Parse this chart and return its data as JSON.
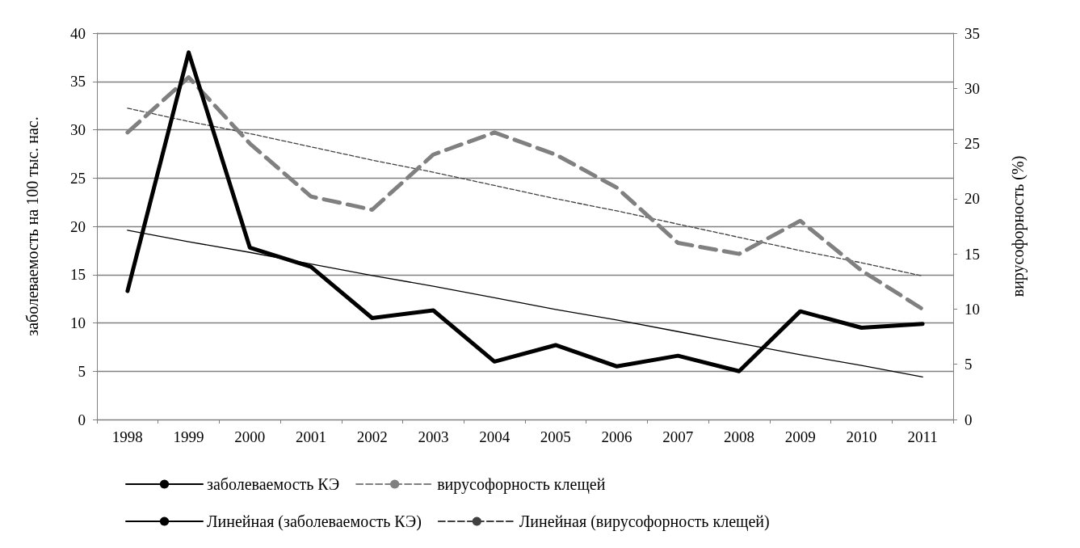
{
  "chart_data": {
    "type": "line",
    "ylabel": "заболеваемость на 100 тыс. нас.",
    "y2label": "вирусофорность (%)",
    "categories": [
      "1998",
      "1999",
      "2000",
      "2001",
      "2002",
      "2003",
      "2004",
      "2005",
      "2006",
      "2007",
      "2008",
      "2009",
      "2010",
      "2011"
    ],
    "series": [
      {
        "name": "заболеваемость КЭ",
        "color": "#000000",
        "line_style": "solid",
        "values": [
          13.3,
          38,
          17.8,
          15.8,
          10.5,
          11.3,
          6.0,
          7.7,
          5.5,
          6.6,
          5.0,
          11.2,
          9.5,
          9.9
        ]
      },
      {
        "name": "вирусофорность клещей",
        "color": "#808080",
        "line_style": "dashed",
        "axis": "y2",
        "values": [
          26,
          31,
          25,
          20.2,
          19,
          24,
          26,
          24,
          21,
          16,
          15,
          18,
          13.5,
          10
        ]
      },
      {
        "name": "Линейная (заболеваемость КЭ)",
        "color": "#000000",
        "line_style": "solid",
        "values": [
          19.6,
          18.4,
          17.3,
          16.1,
          14.9,
          13.8,
          12.6,
          11.4,
          10.3,
          9.1,
          7.9,
          6.7,
          5.6,
          4.4
        ]
      },
      {
        "name": "Линейная (вирусофорность клещей)",
        "color": "#404040",
        "line_style": "dashed",
        "axis": "y2",
        "values": [
          28.2,
          27.0,
          25.9,
          24.7,
          23.5,
          22.4,
          21.2,
          20.0,
          18.9,
          17.7,
          16.5,
          15.3,
          14.2,
          13.0
        ]
      }
    ],
    "ylim": [
      0,
      40
    ],
    "yticks": [
      0,
      5,
      10,
      15,
      20,
      25,
      30,
      35,
      40
    ],
    "y2lim": [
      0,
      35
    ],
    "y2ticks": [
      0,
      5,
      10,
      15,
      20,
      25,
      30,
      35
    ],
    "grid": "y",
    "legend": "bottom",
    "marker": "none"
  }
}
